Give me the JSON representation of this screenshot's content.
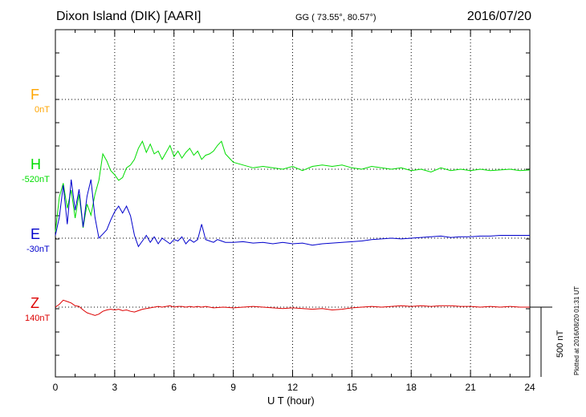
{
  "header": {
    "title": "Dixon Island (DIK)  [AARI]",
    "coords": "GG ( 73.55°,  80.57°)",
    "date": "2016/07/20"
  },
  "colors": {
    "F": "#ffa500",
    "H": "#00dd00",
    "E": "#0000cc",
    "Z": "#dd0000"
  },
  "footer": {
    "plotted": "Plotted at 2016/08/20 01:31  UT",
    "scale": "500 nT"
  },
  "chart_data": {
    "type": "line",
    "xlabel": "U T (hour)",
    "xlim": [
      0,
      24
    ],
    "xticks": [
      "0",
      "3",
      "6",
      "9",
      "12",
      "15",
      "18",
      "21",
      "24"
    ],
    "scale_nT": 500,
    "components": [
      {
        "name": "F",
        "baseline_label": "0nT",
        "points": []
      },
      {
        "name": "H",
        "baseline_label": "-520nT",
        "points": [
          [
            0,
            -450
          ],
          [
            0.2,
            -200
          ],
          [
            0.4,
            -100
          ],
          [
            0.6,
            -280
          ],
          [
            0.8,
            -150
          ],
          [
            1,
            -350
          ],
          [
            1.2,
            -180
          ],
          [
            1.4,
            -420
          ],
          [
            1.6,
            -250
          ],
          [
            1.8,
            -330
          ],
          [
            2,
            -180
          ],
          [
            2.2,
            -80
          ],
          [
            2.4,
            110
          ],
          [
            2.6,
            60
          ],
          [
            2.8,
            -10
          ],
          [
            3,
            -40
          ],
          [
            3.2,
            -80
          ],
          [
            3.4,
            -60
          ],
          [
            3.6,
            10
          ],
          [
            3.8,
            30
          ],
          [
            4,
            70
          ],
          [
            4.2,
            150
          ],
          [
            4.4,
            200
          ],
          [
            4.6,
            120
          ],
          [
            4.8,
            180
          ],
          [
            5,
            110
          ],
          [
            5.2,
            130
          ],
          [
            5.4,
            70
          ],
          [
            5.6,
            120
          ],
          [
            5.8,
            170
          ],
          [
            6,
            90
          ],
          [
            6.2,
            130
          ],
          [
            6.4,
            80
          ],
          [
            6.6,
            120
          ],
          [
            6.8,
            150
          ],
          [
            7,
            100
          ],
          [
            7.2,
            130
          ],
          [
            7.4,
            70
          ],
          [
            7.6,
            100
          ],
          [
            7.8,
            110
          ],
          [
            8,
            130
          ],
          [
            8.2,
            170
          ],
          [
            8.4,
            200
          ],
          [
            8.6,
            110
          ],
          [
            8.8,
            80
          ],
          [
            9,
            50
          ],
          [
            9.5,
            30
          ],
          [
            10,
            10
          ],
          [
            10.5,
            20
          ],
          [
            11,
            10
          ],
          [
            11.5,
            0
          ],
          [
            12,
            20
          ],
          [
            12.5,
            -10
          ],
          [
            13,
            20
          ],
          [
            13.5,
            30
          ],
          [
            14,
            20
          ],
          [
            14.5,
            30
          ],
          [
            15,
            10
          ],
          [
            15.5,
            0
          ],
          [
            16,
            20
          ],
          [
            16.5,
            10
          ],
          [
            17,
            0
          ],
          [
            17.5,
            10
          ],
          [
            18,
            -10
          ],
          [
            18.5,
            0
          ],
          [
            19,
            -20
          ],
          [
            19.5,
            10
          ],
          [
            20,
            -10
          ],
          [
            20.5,
            0
          ],
          [
            21,
            -10
          ],
          [
            21.5,
            0
          ],
          [
            22,
            -10
          ],
          [
            22.5,
            -5
          ],
          [
            23,
            0
          ],
          [
            23.5,
            -10
          ],
          [
            24,
            -5
          ]
        ]
      },
      {
        "name": "E",
        "baseline_label": "-30nT",
        "points": [
          [
            0,
            20
          ],
          [
            0.2,
            150
          ],
          [
            0.4,
            380
          ],
          [
            0.6,
            100
          ],
          [
            0.8,
            420
          ],
          [
            1,
            200
          ],
          [
            1.2,
            350
          ],
          [
            1.4,
            80
          ],
          [
            1.6,
            300
          ],
          [
            1.8,
            420
          ],
          [
            2,
            150
          ],
          [
            2.2,
            0
          ],
          [
            2.4,
            30
          ],
          [
            2.6,
            60
          ],
          [
            2.8,
            130
          ],
          [
            3,
            190
          ],
          [
            3.2,
            230
          ],
          [
            3.4,
            180
          ],
          [
            3.6,
            230
          ],
          [
            3.8,
            160
          ],
          [
            4,
            20
          ],
          [
            4.2,
            -60
          ],
          [
            4.4,
            -20
          ],
          [
            4.6,
            20
          ],
          [
            4.8,
            -30
          ],
          [
            5,
            10
          ],
          [
            5.2,
            -40
          ],
          [
            5.4,
            0
          ],
          [
            5.6,
            -20
          ],
          [
            5.8,
            -40
          ],
          [
            6,
            -10
          ],
          [
            6.2,
            -20
          ],
          [
            6.4,
            10
          ],
          [
            6.6,
            -40
          ],
          [
            6.8,
            -10
          ],
          [
            7,
            -30
          ],
          [
            7.2,
            -10
          ],
          [
            7.4,
            100
          ],
          [
            7.6,
            -10
          ],
          [
            7.8,
            -20
          ],
          [
            8,
            -30
          ],
          [
            8.2,
            -10
          ],
          [
            8.4,
            -20
          ],
          [
            8.6,
            -30
          ],
          [
            9,
            -30
          ],
          [
            9.5,
            -25
          ],
          [
            10,
            -35
          ],
          [
            10.5,
            -30
          ],
          [
            11,
            -40
          ],
          [
            11.5,
            -30
          ],
          [
            12,
            -40
          ],
          [
            12.5,
            -35
          ],
          [
            13,
            -50
          ],
          [
            13.5,
            -40
          ],
          [
            14,
            -35
          ],
          [
            14.5,
            -30
          ],
          [
            15,
            -25
          ],
          [
            15.5,
            -20
          ],
          [
            16,
            -10
          ],
          [
            16.5,
            -5
          ],
          [
            17,
            0
          ],
          [
            17.5,
            -5
          ],
          [
            18,
            0
          ],
          [
            18.5,
            5
          ],
          [
            19,
            10
          ],
          [
            19.5,
            15
          ],
          [
            20,
            5
          ],
          [
            20.5,
            10
          ],
          [
            21,
            10
          ],
          [
            21.5,
            15
          ],
          [
            22,
            15
          ],
          [
            22.5,
            20
          ],
          [
            23,
            20
          ],
          [
            23.5,
            20
          ],
          [
            24,
            20
          ]
        ]
      },
      {
        "name": "Z",
        "baseline_label": "140nT",
        "points": [
          [
            0,
            0
          ],
          [
            0.2,
            20
          ],
          [
            0.4,
            50
          ],
          [
            0.6,
            40
          ],
          [
            0.8,
            30
          ],
          [
            1,
            10
          ],
          [
            1.2,
            5
          ],
          [
            1.4,
            -20
          ],
          [
            1.6,
            -40
          ],
          [
            1.8,
            -50
          ],
          [
            2,
            -60
          ],
          [
            2.2,
            -50
          ],
          [
            2.4,
            -30
          ],
          [
            2.6,
            -20
          ],
          [
            2.8,
            -15
          ],
          [
            3,
            -20
          ],
          [
            3.2,
            -15
          ],
          [
            3.4,
            -25
          ],
          [
            3.6,
            -20
          ],
          [
            3.8,
            -30
          ],
          [
            4,
            -35
          ],
          [
            4.2,
            -25
          ],
          [
            4.4,
            -15
          ],
          [
            4.6,
            -10
          ],
          [
            4.8,
            -5
          ],
          [
            5,
            0
          ],
          [
            5.2,
            5
          ],
          [
            5.4,
            0
          ],
          [
            5.6,
            5
          ],
          [
            5.8,
            10
          ],
          [
            6,
            0
          ],
          [
            6.2,
            5
          ],
          [
            6.4,
            5
          ],
          [
            6.6,
            0
          ],
          [
            6.8,
            5
          ],
          [
            7,
            0
          ],
          [
            7.2,
            5
          ],
          [
            7.4,
            0
          ],
          [
            7.6,
            5
          ],
          [
            7.8,
            0
          ],
          [
            8,
            -5
          ],
          [
            8.5,
            0
          ],
          [
            9,
            -5
          ],
          [
            9.5,
            0
          ],
          [
            10,
            5
          ],
          [
            10.5,
            0
          ],
          [
            11,
            -5
          ],
          [
            11.5,
            -10
          ],
          [
            12,
            -5
          ],
          [
            12.5,
            -10
          ],
          [
            13,
            -15
          ],
          [
            13.5,
            -10
          ],
          [
            14,
            -20
          ],
          [
            14.5,
            -15
          ],
          [
            15,
            -5
          ],
          [
            15.5,
            0
          ],
          [
            16,
            5
          ],
          [
            16.5,
            0
          ],
          [
            17,
            5
          ],
          [
            17.5,
            10
          ],
          [
            18,
            5
          ],
          [
            18.5,
            10
          ],
          [
            19,
            5
          ],
          [
            19.5,
            10
          ],
          [
            20,
            10
          ],
          [
            20.5,
            5
          ],
          [
            21,
            5
          ],
          [
            21.5,
            0
          ],
          [
            22,
            5
          ],
          [
            22.5,
            0
          ],
          [
            23,
            5
          ],
          [
            23.5,
            0
          ],
          [
            24,
            0
          ]
        ]
      }
    ]
  }
}
